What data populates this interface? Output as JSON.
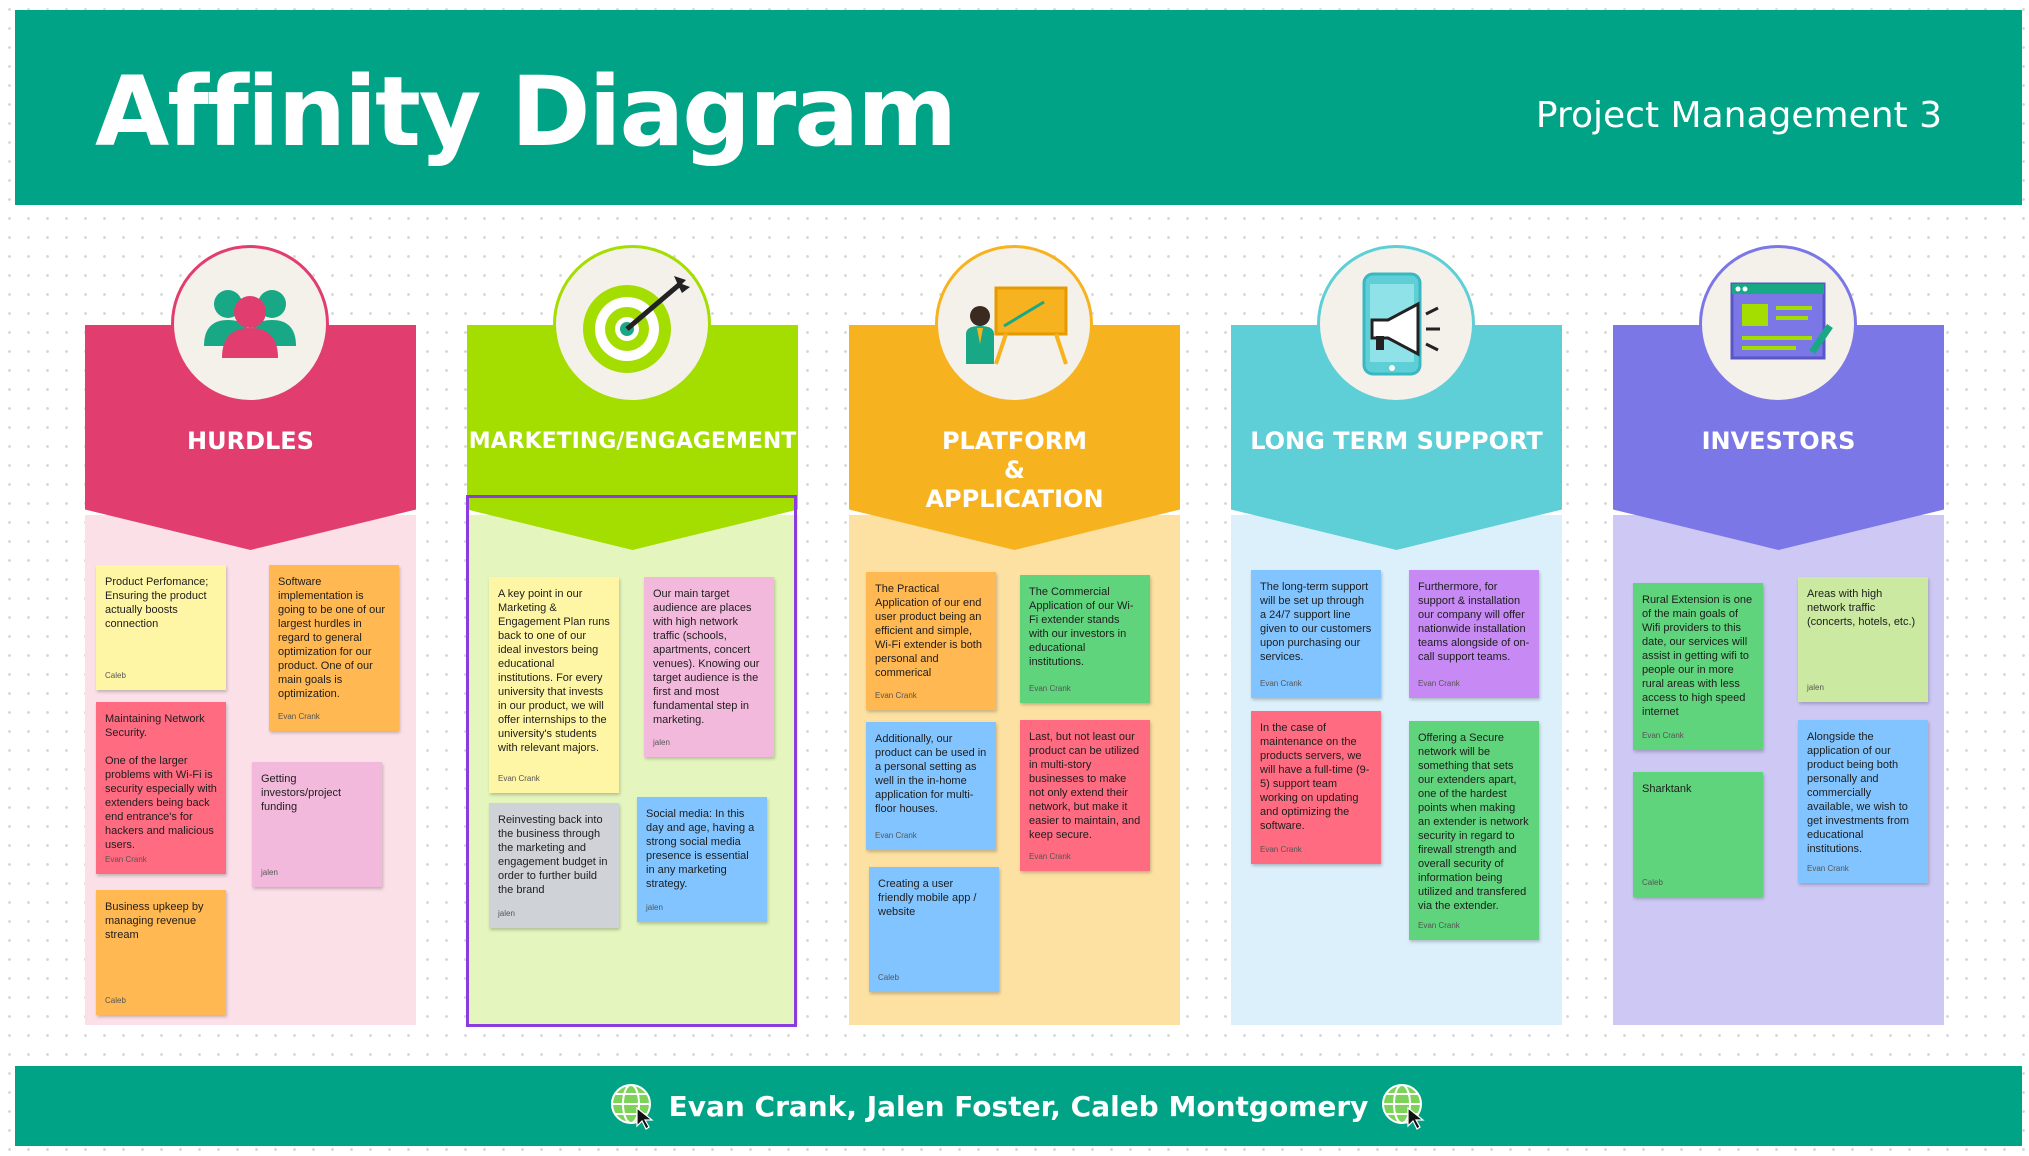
{
  "header": {
    "title": "Affinity Diagram",
    "subtitle": "Project Management 3"
  },
  "footer": {
    "names": "Evan Crank, Jalen Foster, Caleb Montgomery"
  },
  "colors": {
    "header_bg": "#00a385",
    "hurdles": "#e23d6f",
    "marketing": "#a4dd00",
    "platform": "#f7b31f",
    "support": "#5ecfd6",
    "investors": "#7b77e6"
  },
  "columns": [
    {
      "title": "HURDLES",
      "icon": "team-people-icon",
      "notes": [
        {
          "text": "Product Perfomance; Ensuring the product actually boosts connection",
          "author": "Caleb"
        },
        {
          "text": "Software implementation is going to be one of our largest hurdles in regard to general optimization for our product. One of our main goals is optimization.",
          "author": "Evan Crank"
        },
        {
          "text": "Maintaining Network Security.\n\nOne of the larger problems with Wi-Fi is security especially with extenders being back end entrance's for hackers and malicious users.",
          "author": "Evan Crank"
        },
        {
          "text": "Getting investors/project funding",
          "author": "jalen"
        },
        {
          "text": "Business upkeep by managing revenue stream",
          "author": "Caleb"
        }
      ]
    },
    {
      "title": "MARKETING/ENGAGEMENT",
      "icon": "target-dart-icon",
      "notes": [
        {
          "text": "A key point in our Marketing & Engagement Plan runs back to one of our ideal investors being educational institutions. For every university that invests in our product, we will offer internships to the university's students with relevant majors.",
          "author": "Evan Crank"
        },
        {
          "text": "Our main target audience are places with high network traffic (schools, apartments, concert venues). Knowing our target audience is the first and most fundamental step in marketing.",
          "author": "jalen"
        },
        {
          "text": "Reinvesting back into the business through the marketing and engagement budget in order to further build the brand",
          "author": "jalen"
        },
        {
          "text": "Social media: In this day and age, having a strong social media presence is essential in any marketing strategy.",
          "author": "jalen"
        }
      ]
    },
    {
      "title": "PLATFORM\n&\nAPPLICATION",
      "icon": "presentation-board-icon",
      "notes": [
        {
          "text": "The Practical Application of our end user product being an efficient and simple, Wi-Fi extender is both personal and commerical",
          "author": "Evan Crank"
        },
        {
          "text": "The Commercial Application of our Wi-Fi extender stands with our investors in educational institutions.",
          "author": "Evan Crank"
        },
        {
          "text": "Additionally, our product can be used in a personal setting as well in the in-home application for multi-floor houses.",
          "author": "Evan Crank"
        },
        {
          "text": "Last, but not least our product can be utilized in multi-story businesses to make not only extend their network, but make it easier to maintain, and keep secure.",
          "author": "Evan Crank"
        },
        {
          "text": "Creating a user friendly mobile app / website",
          "author": "Caleb"
        }
      ]
    },
    {
      "title": "LONG TERM SUPPORT",
      "icon": "phone-megaphone-icon",
      "notes": [
        {
          "text": "The long-term support will be set up through a 24/7 support line given to our customers upon purchasing our services.",
          "author": "Evan Crank"
        },
        {
          "text": "Furthermore, for support & installation our company will offer nationwide installation teams alongside of on-call support teams.",
          "author": "Evan Crank"
        },
        {
          "text": "In the case of maintenance on the products servers, we will have a full-time (9-5) support team working on updating and optimizing the software.",
          "author": "Evan Crank"
        },
        {
          "text": "Offering a Secure network will be something that sets our extenders apart, one of the hardest points when making an extender is network security in regard to firewall strength and overall security of information being utilized and transfered via the extender.",
          "author": "Evan Crank"
        }
      ]
    },
    {
      "title": "INVESTORS",
      "icon": "browser-window-icon",
      "notes": [
        {
          "text": "Rural Extension is one of the main goals of Wifi providers to this date, our services will assist in getting wifi to people our in more rural areas with less access to high speed internet",
          "author": "Evan Crank"
        },
        {
          "text": "Areas with high network traffic (concerts, hotels, etc.)",
          "author": "jalen"
        },
        {
          "text": "Sharktank",
          "author": "Caleb"
        },
        {
          "text": "Alongside the application of our product being both personally and commercially available, we wish to get investments from educational institutions.",
          "author": "Evan Crank"
        }
      ]
    }
  ]
}
